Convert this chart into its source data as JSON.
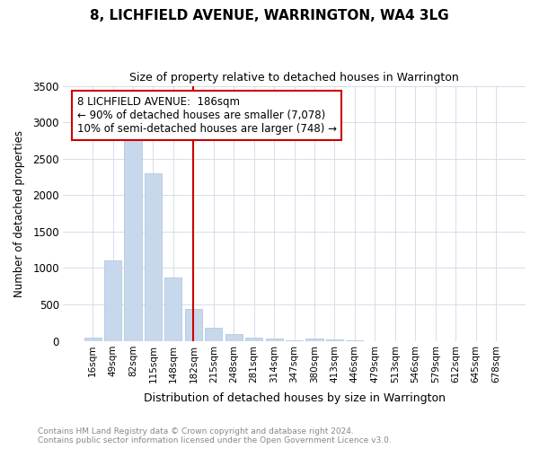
{
  "title": "8, LICHFIELD AVENUE, WARRINGTON, WA4 3LG",
  "subtitle": "Size of property relative to detached houses in Warrington",
  "xlabel": "Distribution of detached houses by size in Warrington",
  "ylabel": "Number of detached properties",
  "bar_color": "#c8d8ec",
  "bar_edge_color": "#a8c0dc",
  "annotation_box_color": "#cc0000",
  "vline_color": "#cc0000",
  "annotation_title": "8 LICHFIELD AVENUE:  186sqm",
  "annotation_line1": "← 90% of detached houses are smaller (7,078)",
  "annotation_line2": "10% of semi-detached houses are larger (748) →",
  "categories": [
    "16sqm",
    "49sqm",
    "82sqm",
    "115sqm",
    "148sqm",
    "182sqm",
    "215sqm",
    "248sqm",
    "281sqm",
    "314sqm",
    "347sqm",
    "380sqm",
    "413sqm",
    "446sqm",
    "479sqm",
    "513sqm",
    "546sqm",
    "579sqm",
    "612sqm",
    "645sqm",
    "678sqm"
  ],
  "values": [
    40,
    1100,
    2750,
    2300,
    870,
    440,
    185,
    95,
    50,
    30,
    5,
    30,
    20,
    5,
    0,
    0,
    0,
    0,
    0,
    0,
    0
  ],
  "ylim": [
    0,
    3500
  ],
  "yticks": [
    0,
    500,
    1000,
    1500,
    2000,
    2500,
    3000,
    3500
  ],
  "vline_index": 5,
  "footer_line1": "Contains HM Land Registry data © Crown copyright and database right 2024.",
  "footer_line2": "Contains public sector information licensed under the Open Government Licence v3.0.",
  "bg_color": "#ffffff",
  "plot_bg_color": "#ffffff",
  "grid_color": "#d0d8e8"
}
